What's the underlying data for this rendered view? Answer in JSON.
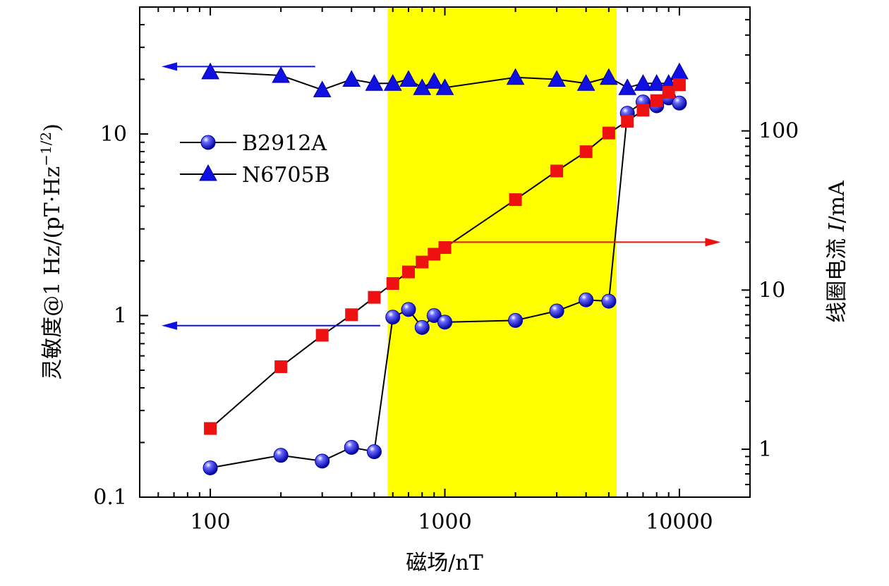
{
  "chart_data": {
    "type": "line",
    "xscale": "log",
    "xlim": [
      50,
      20000
    ],
    "xticks": [
      100,
      1000,
      10000
    ],
    "xtick_labels": [
      "100",
      "1000",
      "10000"
    ],
    "xlabel": "磁场/nT",
    "ylabel_left": "灵敏度@1 Hz/(pT·Hz⁻¹ᐟ²)",
    "ylabel_left_parts": {
      "main": "灵敏度@1 Hz/(pT·Hz",
      "sup": "−1/2",
      "end": ")"
    },
    "ylim_left": [
      0.1,
      50
    ],
    "yticks_left": [
      0.1,
      1,
      10
    ],
    "ytick_labels_left": [
      "0.1",
      "1",
      "10"
    ],
    "ylabel_right_parts": {
      "main": "线圈电流 ",
      "italic": "I",
      "end": "/mA"
    },
    "ylim_right": [
      0.5,
      600
    ],
    "yticks_right": [
      1,
      10,
      100
    ],
    "ytick_labels_right": [
      "1",
      "10",
      "100"
    ],
    "highlight_band": {
      "x_from": 570,
      "x_to": 5400,
      "color": "#ffff00"
    },
    "series": [
      {
        "name": "B2912A",
        "axis": "left",
        "marker": "circle",
        "color": "#1010e0",
        "x": [
          100,
          200,
          300,
          400,
          500,
          600,
          700,
          800,
          900,
          1000,
          2000,
          3000,
          4000,
          5000,
          6000,
          7000,
          8000,
          9000,
          10000
        ],
        "y": [
          0.145,
          0.17,
          0.158,
          0.188,
          0.178,
          0.98,
          1.08,
          0.86,
          1.0,
          0.92,
          0.94,
          1.06,
          1.22,
          1.2,
          13.0,
          15.0,
          14.3,
          15.8,
          14.8
        ]
      },
      {
        "name": "N6705B",
        "axis": "left",
        "marker": "triangle",
        "color": "#1010e0",
        "x": [
          100,
          200,
          300,
          400,
          500,
          600,
          700,
          800,
          900,
          1000,
          2000,
          3000,
          4000,
          5000,
          6000,
          7000,
          8000,
          9000,
          10000
        ],
        "y": [
          22.0,
          21.0,
          17.5,
          20.0,
          19.0,
          19.0,
          20.0,
          18.0,
          19.5,
          18.0,
          20.5,
          20.0,
          19.0,
          20.5,
          18.0,
          19.0,
          19.0,
          19.0,
          22.0
        ]
      },
      {
        "name": "coil current",
        "axis": "right",
        "marker": "square",
        "color": "#ee1111",
        "x": [
          100,
          200,
          300,
          400,
          500,
          600,
          700,
          800,
          900,
          1000,
          2000,
          3000,
          4000,
          5000,
          6000,
          7000,
          8000,
          9000,
          10000
        ],
        "y": [
          1.35,
          3.3,
          5.2,
          7.0,
          9.0,
          11.0,
          13.0,
          15.0,
          16.8,
          18.5,
          37.0,
          56.0,
          74.0,
          97.0,
          115.0,
          135.0,
          155.0,
          175.0,
          195.0
        ]
      }
    ],
    "legend": {
      "position": "upper-left",
      "entries": [
        "B2912A",
        "N6705B"
      ]
    },
    "annotations": [
      {
        "kind": "arrow",
        "axis": "left",
        "direction": "left",
        "x_from": 280,
        "x_to": 62,
        "y": 23.5,
        "color": "#1010e0"
      },
      {
        "kind": "arrow",
        "axis": "left",
        "direction": "left",
        "x_from": 530,
        "x_to": 62,
        "y": 0.88,
        "color": "#1010e0"
      },
      {
        "kind": "arrow",
        "axis": "right",
        "direction": "right",
        "x_from": 1030,
        "x_to": 15000,
        "y": 20.0,
        "color": "#ee1111"
      }
    ]
  }
}
